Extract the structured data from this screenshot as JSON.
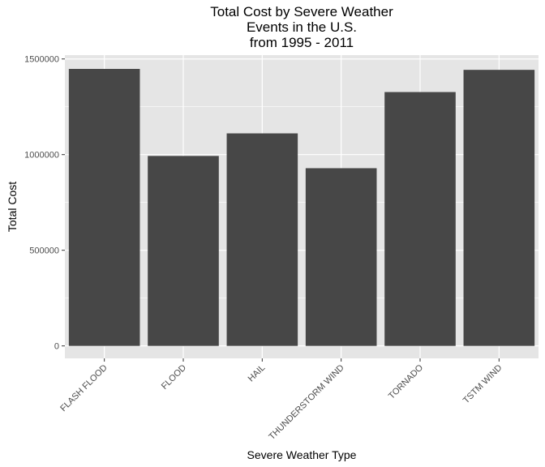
{
  "chart_data": {
    "type": "bar",
    "title": [
      "Total Cost by Severe Weather",
      "Events in the U.S.",
      "from 1995 - 2011"
    ],
    "xlabel": "Severe Weather Type",
    "ylabel": "Total Cost",
    "categories": [
      "FLASH FLOOD",
      "FLOOD",
      "HAIL",
      "THUNDERSTORM WIND",
      "TORNADO",
      "TSTM WIND"
    ],
    "values": [
      1448000,
      993000,
      1111000,
      929000,
      1327000,
      1443000
    ],
    "ylim": [
      -65000,
      1520000
    ],
    "yticks": [
      0,
      500000,
      1000000,
      1500000
    ],
    "ytick_labels": [
      "0",
      "500000",
      "1000000",
      "1500000"
    ],
    "grid": true,
    "bar_color": "#474747",
    "panel_color": "#e5e5e5",
    "grid_color": "#ffffff"
  }
}
